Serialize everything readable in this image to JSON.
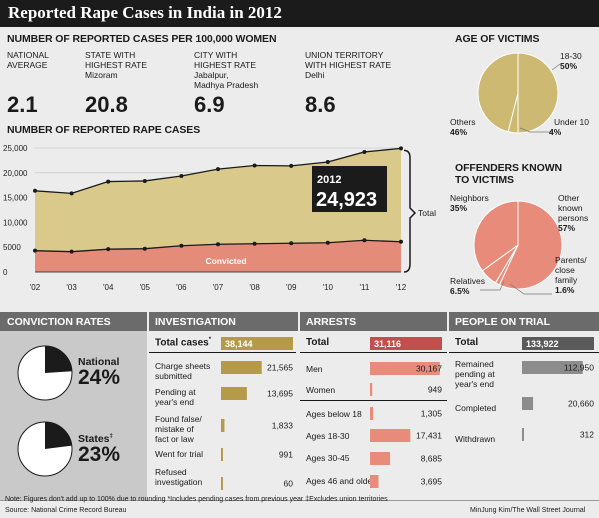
{
  "title": "Reported Rape Cases in India in 2012",
  "per100k": {
    "heading": "NUMBER OF REPORTED CASES PER 100,000 WOMEN",
    "items": [
      {
        "label1": "NATIONAL",
        "label2": "AVERAGE",
        "place1": "",
        "place2": "",
        "value": "2.1"
      },
      {
        "label1": "STATE WITH",
        "label2": "HIGHEST RATE",
        "place1": "Mizoram",
        "place2": "",
        "value": "20.8"
      },
      {
        "label1": "CITY WITH",
        "label2": "HIGHEST RATE",
        "place1": "Jabalpur,",
        "place2": "Madhya Pradesh",
        "value": "6.9"
      },
      {
        "label1": "UNION TERRITORY",
        "label2": "WITH HIGHEST RATE",
        "place1": "Delhi",
        "place2": "",
        "value": "8.6"
      }
    ]
  },
  "chart_data": [
    {
      "type": "area",
      "title": "NUMBER OF REPORTED RAPE CASES",
      "categories": [
        "'02",
        "'03",
        "'04",
        "'05",
        "'06",
        "'07",
        "'08",
        "'09",
        "'10",
        "'11",
        "'12"
      ],
      "series": [
        {
          "name": "Total",
          "values": [
            16373,
            15847,
            18233,
            18359,
            19348,
            20737,
            21467,
            21397,
            22172,
            24206,
            24923
          ],
          "color": "#d9ca8c"
        },
        {
          "name": "Convicted",
          "values": [
            4300,
            4100,
            4600,
            4700,
            5300,
            5600,
            5700,
            5800,
            5900,
            6400,
            6100
          ],
          "color": "#e58b7a"
        }
      ],
      "ylim": [
        0,
        25000
      ],
      "yticks": [
        "0",
        "5000",
        "10,000",
        "15,000",
        "20,000",
        "25,000"
      ],
      "callout": {
        "year": "2012",
        "value": "24,923"
      }
    },
    {
      "type": "pie",
      "title": "AGE OF VICTIMS",
      "slices": [
        {
          "label": "18-30",
          "value": 50,
          "text": "50%"
        },
        {
          "label": "Under 10",
          "value": 4,
          "text": "4%"
        },
        {
          "label": "Others",
          "value": 46,
          "text": "46%"
        }
      ]
    },
    {
      "type": "pie",
      "title1": "OFFENDERS KNOWN",
      "title2": "TO VICTIMS",
      "slices": [
        {
          "label1": "Other",
          "label2": "known",
          "label3": "persons",
          "value": 57,
          "text": "57%"
        },
        {
          "label1": "Parents/",
          "label2": "close",
          "label3": "family",
          "value": 1.6,
          "text": "1.6%"
        },
        {
          "label1": "Relatives",
          "label2": "",
          "label3": "",
          "value": 6.5,
          "text": "6.5%"
        },
        {
          "label1": "Neighbors",
          "label2": "",
          "label3": "",
          "value": 35,
          "text": "35%"
        }
      ]
    },
    {
      "type": "pie",
      "title": "CONVICTION RATES",
      "items": [
        {
          "label": "National",
          "sup": "",
          "value": 24,
          "text": "24%"
        },
        {
          "label": "States",
          "sup": "‡",
          "value": 23,
          "text": "23%"
        }
      ]
    },
    {
      "type": "bar",
      "title": "INVESTIGATION",
      "total": {
        "label": "Total cases",
        "sup": "*",
        "value": 38144,
        "text": "38,144"
      },
      "rows": [
        {
          "l1": "Charge sheets",
          "l2": "submitted",
          "l3": "",
          "value": 21565,
          "text": "21,565"
        },
        {
          "l1": "Pending at",
          "l2": "year's end",
          "l3": "",
          "value": 13695,
          "text": "13,695"
        },
        {
          "l1": "Found false/",
          "l2": "mistake of",
          "l3": "fact or law",
          "value": 1833,
          "text": "1,833"
        },
        {
          "l1": "Went for trial",
          "l2": "",
          "l3": "",
          "value": 991,
          "text": "991"
        },
        {
          "l1": "Refused",
          "l2": "investigation",
          "l3": "",
          "value": 60,
          "text": "60"
        }
      ]
    },
    {
      "type": "bar",
      "title": "ARRESTS",
      "total": {
        "label": "Total",
        "value": 31116,
        "text": "31,116"
      },
      "rows": [
        {
          "l1": "Men",
          "value": 30167,
          "text": "30,167"
        },
        {
          "l1": "Women",
          "value": 949,
          "text": "949"
        },
        {
          "l1": "Ages below 18",
          "value": 1305,
          "text": "1,305"
        },
        {
          "l1": "Ages 18-30",
          "value": 17431,
          "text": "17,431"
        },
        {
          "l1": "Ages 30-45",
          "value": 8685,
          "text": "8,685"
        },
        {
          "l1": "Ages 46 and older",
          "value": 3695,
          "text": "3,695"
        }
      ]
    },
    {
      "type": "bar",
      "title": "PEOPLE ON TRIAL",
      "total": {
        "label": "Total",
        "value": 133922,
        "text": "133,922"
      },
      "rows": [
        {
          "l1": "Remained",
          "l2": "pending at",
          "l3": "year's end",
          "value": 112950,
          "text": "112,950"
        },
        {
          "l1": "Completed",
          "l2": "",
          "l3": "",
          "value": 20660,
          "text": "20,660"
        },
        {
          "l1": "Withdrawn",
          "l2": "",
          "l3": "",
          "value": 312,
          "text": "312"
        }
      ]
    }
  ],
  "colors": {
    "gold": "#b59a4a",
    "goldLight": "#cdb971",
    "red": "#c0504d",
    "salmon": "#e88b7b",
    "gray": "#8c8c8c",
    "dark": "#1b1b1b"
  },
  "footer": {
    "note": "Note: Figures don't add up to 100% due to rounding  *Includes pending cases from previous year ‡Excludes union territories",
    "source": "Source: National Crime Record Bureau",
    "credit": "MinJung Kim/The Wall Street Journal"
  }
}
